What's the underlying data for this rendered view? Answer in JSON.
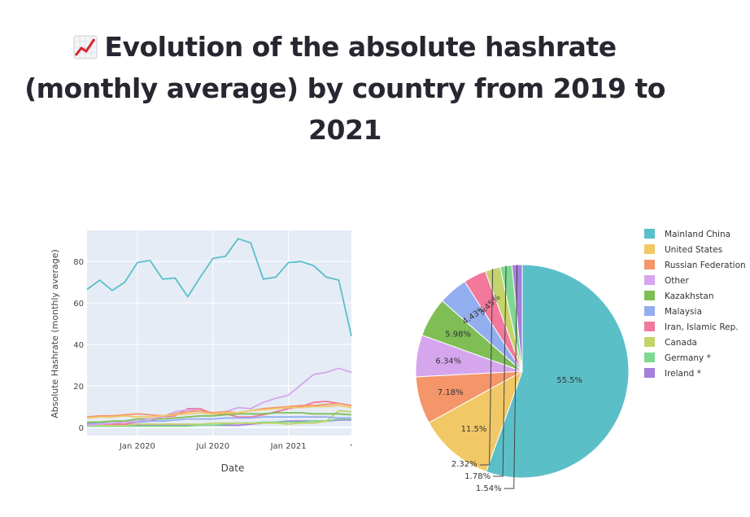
{
  "page": {
    "title": "Evolution of the absolute hashrate (monthly average) by country from 2019 to 2021",
    "title_icon": "chart-increasing-icon"
  },
  "chart_data": [
    {
      "type": "line",
      "xlabel": "Date",
      "ylabel": "Absolute Hashrate (monthly average)",
      "x": [
        "2019-09",
        "2019-10",
        "2019-11",
        "2019-12",
        "2020-01",
        "2020-02",
        "2020-03",
        "2020-04",
        "2020-05",
        "2020-06",
        "2020-07",
        "2020-08",
        "2020-09",
        "2020-10",
        "2020-11",
        "2020-12",
        "2021-01",
        "2021-02",
        "2021-03",
        "2021-04",
        "2021-05",
        "2021-06"
      ],
      "xticks": [
        "Jan 2020",
        "Jul 2020",
        "Jan 2021"
      ],
      "yticks": [
        0,
        20,
        40,
        60,
        80
      ],
      "ylim": [
        -4,
        95
      ],
      "grid": true,
      "series": [
        {
          "name": "Mainland China",
          "color": "#5bbfc8",
          "values": [
            66.5,
            71,
            66,
            70,
            79.5,
            80.5,
            71.5,
            72,
            63,
            72.5,
            81.5,
            82.5,
            91,
            89,
            71.5,
            72.5,
            79.5,
            80,
            78,
            72.5,
            71,
            44
          ]
        },
        {
          "name": "United States",
          "color": "#f2c867",
          "values": [
            4.5,
            5,
            5,
            5.5,
            5,
            5,
            5.5,
            6,
            6.5,
            7,
            6.5,
            7,
            7,
            8,
            8.5,
            9,
            9.5,
            9.5,
            10,
            10,
            10.5,
            9.5
          ]
        },
        {
          "name": "Russian Federation",
          "color": "#f4956a",
          "values": [
            5,
            5.5,
            5.5,
            6,
            6.5,
            6,
            5.5,
            6.5,
            7.5,
            8,
            7,
            7.5,
            7,
            8,
            9,
            9.5,
            10,
            10.5,
            10.5,
            11,
            11.5,
            10.5
          ]
        },
        {
          "name": "Other",
          "color": "#d5a6ee",
          "values": [
            1,
            1.5,
            2,
            2.5,
            3,
            4,
            5,
            7.5,
            8.5,
            8,
            7,
            7.5,
            9.5,
            9,
            12,
            14,
            15.5,
            20.5,
            25.5,
            26.5,
            28.5,
            26.5
          ]
        },
        {
          "name": "Kazakhstan",
          "color": "#7ebe55",
          "values": [
            2.5,
            2.5,
            3,
            3,
            4,
            4,
            4,
            4.5,
            5,
            5.5,
            5.5,
            6,
            6.5,
            6.5,
            6.5,
            7,
            7,
            7,
            6.5,
            6.5,
            6.5,
            6
          ]
        },
        {
          "name": "Malaysia",
          "color": "#93aeee",
          "values": [
            2,
            2,
            2,
            2.5,
            2.5,
            3,
            3,
            3.5,
            4,
            4,
            4,
            4.5,
            4.5,
            4.5,
            5,
            5,
            5,
            5,
            5,
            5,
            4.5,
            4.5
          ]
        },
        {
          "name": "Iran, Islamic Rep.",
          "color": "#f2789c",
          "values": [
            1.5,
            1.5,
            1.5,
            1.5,
            2.5,
            3,
            5,
            5.5,
            9,
            9,
            6.5,
            6.5,
            5,
            5,
            6,
            7.5,
            9,
            10,
            12,
            12.5,
            11.5,
            10.5
          ]
        },
        {
          "name": "Canada",
          "color": "#c4d36b",
          "values": [
            1,
            1,
            1,
            1,
            1.5,
            1.5,
            1.5,
            1.5,
            1.5,
            1.5,
            2,
            2,
            2,
            2,
            2,
            2,
            1.5,
            2,
            2,
            3,
            8,
            7.5
          ]
        },
        {
          "name": "Germany *",
          "color": "#7fd891",
          "values": [
            0.5,
            0.5,
            0.5,
            0.5,
            0.5,
            0.5,
            0.5,
            0.5,
            0.5,
            1,
            1,
            1.5,
            2,
            2,
            2.5,
            2.5,
            2.5,
            2.5,
            3,
            3,
            4,
            4
          ]
        },
        {
          "name": "Ireland *",
          "color": "#a57fdc",
          "values": [
            1,
            1,
            1,
            1,
            1,
            1,
            1,
            1,
            1,
            1,
            1,
            1,
            1,
            1.5,
            2,
            2.5,
            3,
            3,
            3,
            3,
            3.5,
            3.5
          ]
        }
      ]
    },
    {
      "type": "pie",
      "labels": [
        "Mainland China",
        "United States",
        "Russian Federation",
        "Other",
        "Kazakhstan",
        "Malaysia",
        "Iran, Islamic Rep.",
        "Canada",
        "Germany *",
        "Ireland *"
      ],
      "values": [
        55.5,
        11.5,
        7.18,
        6.34,
        5.98,
        4.43,
        3.45,
        2.32,
        1.78,
        1.54
      ],
      "value_labels": [
        "55.5%",
        "11.5%",
        "7.18%",
        "6.34%",
        "5.98%",
        "4.43%",
        "3.45%",
        "2.32%",
        "1.78%",
        "1.54%"
      ],
      "colors": [
        "#5bbfc8",
        "#f2c867",
        "#f4956a",
        "#d5a6ee",
        "#7ebe55",
        "#93aeee",
        "#f2789c",
        "#c4d36b",
        "#7fd891",
        "#a57fdc"
      ],
      "legend": "right"
    }
  ]
}
